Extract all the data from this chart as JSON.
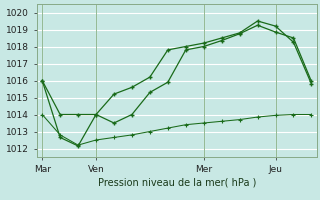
{
  "title": "Pression niveau de la mer( hPa )",
  "background_color": "#c8e8e4",
  "grid_color": "#b0d8d4",
  "line_color": "#1a6b1a",
  "ylim": [
    1011.5,
    1020.5
  ],
  "yticks": [
    1012,
    1013,
    1014,
    1015,
    1016,
    1017,
    1018,
    1019,
    1020
  ],
  "xtick_labels": [
    "Mar",
    "Ven",
    "Mer",
    "Jeu"
  ],
  "xtick_positions": [
    0,
    3,
    9,
    13
  ],
  "vline_x": [
    0,
    3,
    9,
    13
  ],
  "s1_x": [
    0,
    1,
    2,
    3,
    4,
    5,
    6,
    7,
    8,
    9,
    10,
    11,
    12,
    13,
    14,
    15
  ],
  "s1_y": [
    1016.0,
    1014.0,
    1014.0,
    1014.0,
    1015.2,
    1015.6,
    1016.2,
    1017.8,
    1018.0,
    1018.2,
    1018.5,
    1018.8,
    1019.5,
    1019.2,
    1018.25,
    1015.8
  ],
  "s2_x": [
    0,
    1,
    2,
    3,
    4,
    5,
    6,
    7,
    8,
    9,
    10,
    11,
    12,
    13,
    14,
    15
  ],
  "s2_y": [
    1016.0,
    1012.65,
    1012.15,
    1014.0,
    1013.5,
    1014.0,
    1015.3,
    1015.9,
    1017.8,
    1018.0,
    1018.35,
    1018.75,
    1019.25,
    1018.85,
    1018.5,
    1015.95
  ],
  "s3_x": [
    0,
    1,
    2,
    3,
    4,
    5,
    6,
    7,
    8,
    9,
    10,
    11,
    12,
    13,
    14,
    15
  ],
  "s3_y": [
    1014.0,
    1012.8,
    1012.2,
    1012.5,
    1012.65,
    1012.8,
    1013.0,
    1013.2,
    1013.4,
    1013.5,
    1013.6,
    1013.7,
    1013.85,
    1013.95,
    1014.0,
    1014.0
  ]
}
